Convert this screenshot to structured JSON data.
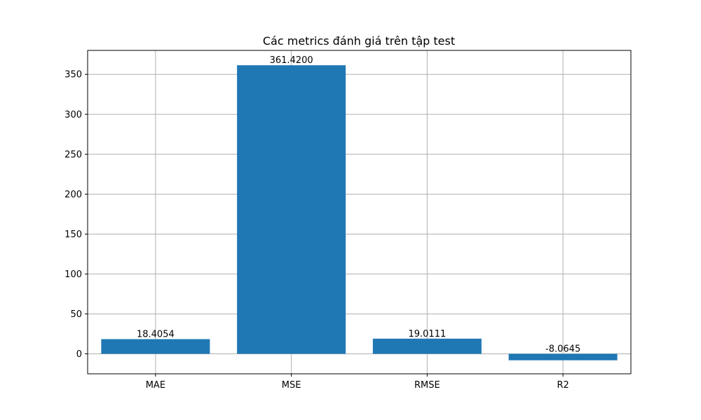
{
  "chart_data": {
    "type": "bar",
    "title": "Các metrics đánh giá trên tập test",
    "xlabel": "",
    "ylabel": "",
    "categories": [
      "MAE",
      "MSE",
      "RMSE",
      "R2"
    ],
    "values": [
      18.4054,
      361.42,
      19.0111,
      -8.0645
    ],
    "value_labels": [
      "18.4054",
      "361.4200",
      "19.0111",
      "-8.0645"
    ],
    "ylim": [
      -25,
      380
    ],
    "yticks": [
      0,
      50,
      100,
      150,
      200,
      250,
      300,
      350
    ],
    "grid": true,
    "bar_color": "#1f77b4"
  }
}
